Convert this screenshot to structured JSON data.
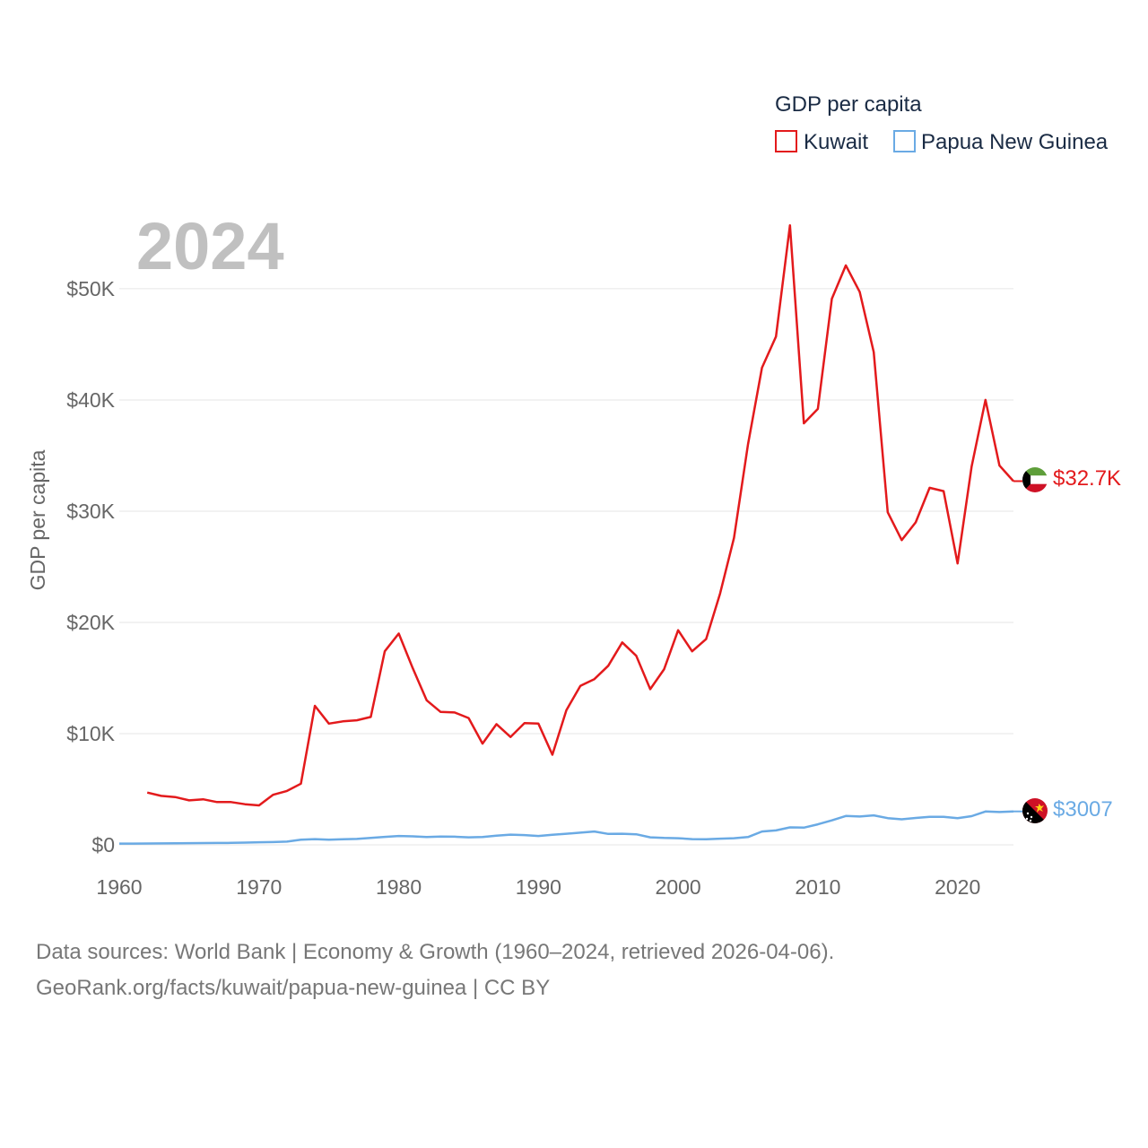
{
  "chart_data": {
    "type": "line",
    "title": "GDP per capita",
    "year_label": "2024",
    "ylabel": "GDP per capita",
    "xlabel": "",
    "xlim": [
      1960,
      2024
    ],
    "ylim": [
      0,
      55800
    ],
    "x_ticks": [
      1960,
      1970,
      1980,
      1990,
      2000,
      2010,
      2020
    ],
    "y_ticks": [
      {
        "value": 0,
        "label": "$0"
      },
      {
        "value": 10000,
        "label": "$10K"
      },
      {
        "value": 20000,
        "label": "$20K"
      },
      {
        "value": 30000,
        "label": "$30K"
      },
      {
        "value": 40000,
        "label": "$40K"
      },
      {
        "value": 50000,
        "label": "$50K"
      }
    ],
    "legend": {
      "title": "GDP per capita",
      "position": "top-right"
    },
    "series": [
      {
        "name": "Kuwait",
        "color": "#e31a1c",
        "end_label": "$32.7K",
        "x": [
          1962,
          1963,
          1964,
          1965,
          1966,
          1967,
          1968,
          1969,
          1970,
          1971,
          1972,
          1973,
          1974,
          1975,
          1976,
          1977,
          1978,
          1979,
          1980,
          1981,
          1982,
          1983,
          1984,
          1985,
          1986,
          1987,
          1988,
          1989,
          1990,
          1991,
          1992,
          1993,
          1994,
          1995,
          1996,
          1997,
          1998,
          1999,
          2000,
          2001,
          2002,
          2003,
          2004,
          2005,
          2006,
          2007,
          2008,
          2009,
          2010,
          2011,
          2012,
          2013,
          2014,
          2015,
          2016,
          2017,
          2018,
          2019,
          2020,
          2021,
          2022,
          2023,
          2024
        ],
        "values": [
          4700,
          4400,
          4300,
          4000,
          4100,
          3850,
          3850,
          3650,
          3550,
          4500,
          4850,
          5500,
          12500,
          10900,
          11100,
          11200,
          11500,
          17400,
          19000,
          15900,
          13000,
          11950,
          11900,
          11400,
          9100,
          10850,
          9700,
          10950,
          10900,
          8100,
          12100,
          14300,
          14900,
          16100,
          18200,
          17000,
          14000,
          15800,
          19300,
          17400,
          18500,
          22600,
          27600,
          36000,
          42900,
          45700,
          55700,
          37900,
          39200,
          49100,
          52100,
          49700,
          44300,
          29900,
          27400,
          29000,
          32100,
          31800,
          25300,
          34000,
          40000,
          34100,
          32700
        ]
      },
      {
        "name": "Papua New Guinea",
        "color": "#6aaae4",
        "end_label": "$3007",
        "x": [
          1960,
          1961,
          1962,
          1963,
          1964,
          1965,
          1966,
          1967,
          1968,
          1969,
          1970,
          1971,
          1972,
          1973,
          1974,
          1975,
          1976,
          1977,
          1978,
          1979,
          1980,
          1981,
          1982,
          1983,
          1984,
          1985,
          1986,
          1987,
          1988,
          1989,
          1990,
          1991,
          1992,
          1993,
          1994,
          1995,
          1996,
          1997,
          1998,
          1999,
          2000,
          2001,
          2002,
          2003,
          2004,
          2005,
          2006,
          2007,
          2008,
          2009,
          2010,
          2011,
          2012,
          2013,
          2014,
          2015,
          2016,
          2017,
          2018,
          2019,
          2020,
          2021,
          2022,
          2023,
          2024
        ],
        "values": [
          110,
          115,
          120,
          130,
          140,
          150,
          160,
          170,
          180,
          200,
          230,
          250,
          290,
          460,
          520,
          470,
          500,
          530,
          620,
          720,
          800,
          770,
          700,
          750,
          730,
          680,
          710,
          820,
          920,
          880,
          800,
          900,
          1000,
          1100,
          1200,
          980,
          1000,
          950,
          680,
          620,
          600,
          520,
          510,
          560,
          600,
          700,
          1200,
          1300,
          1570,
          1550,
          1850,
          2200,
          2600,
          2550,
          2650,
          2400,
          2300,
          2420,
          2520,
          2520,
          2400,
          2580,
          3000,
          2950,
          3007
        ]
      }
    ]
  },
  "footer": {
    "line1": "Data sources: World Bank | Economy & Growth (1960–2024, retrieved 2026-04-06).",
    "line2": "GeoRank.org/facts/kuwait/papua-new-guinea | CC BY"
  }
}
